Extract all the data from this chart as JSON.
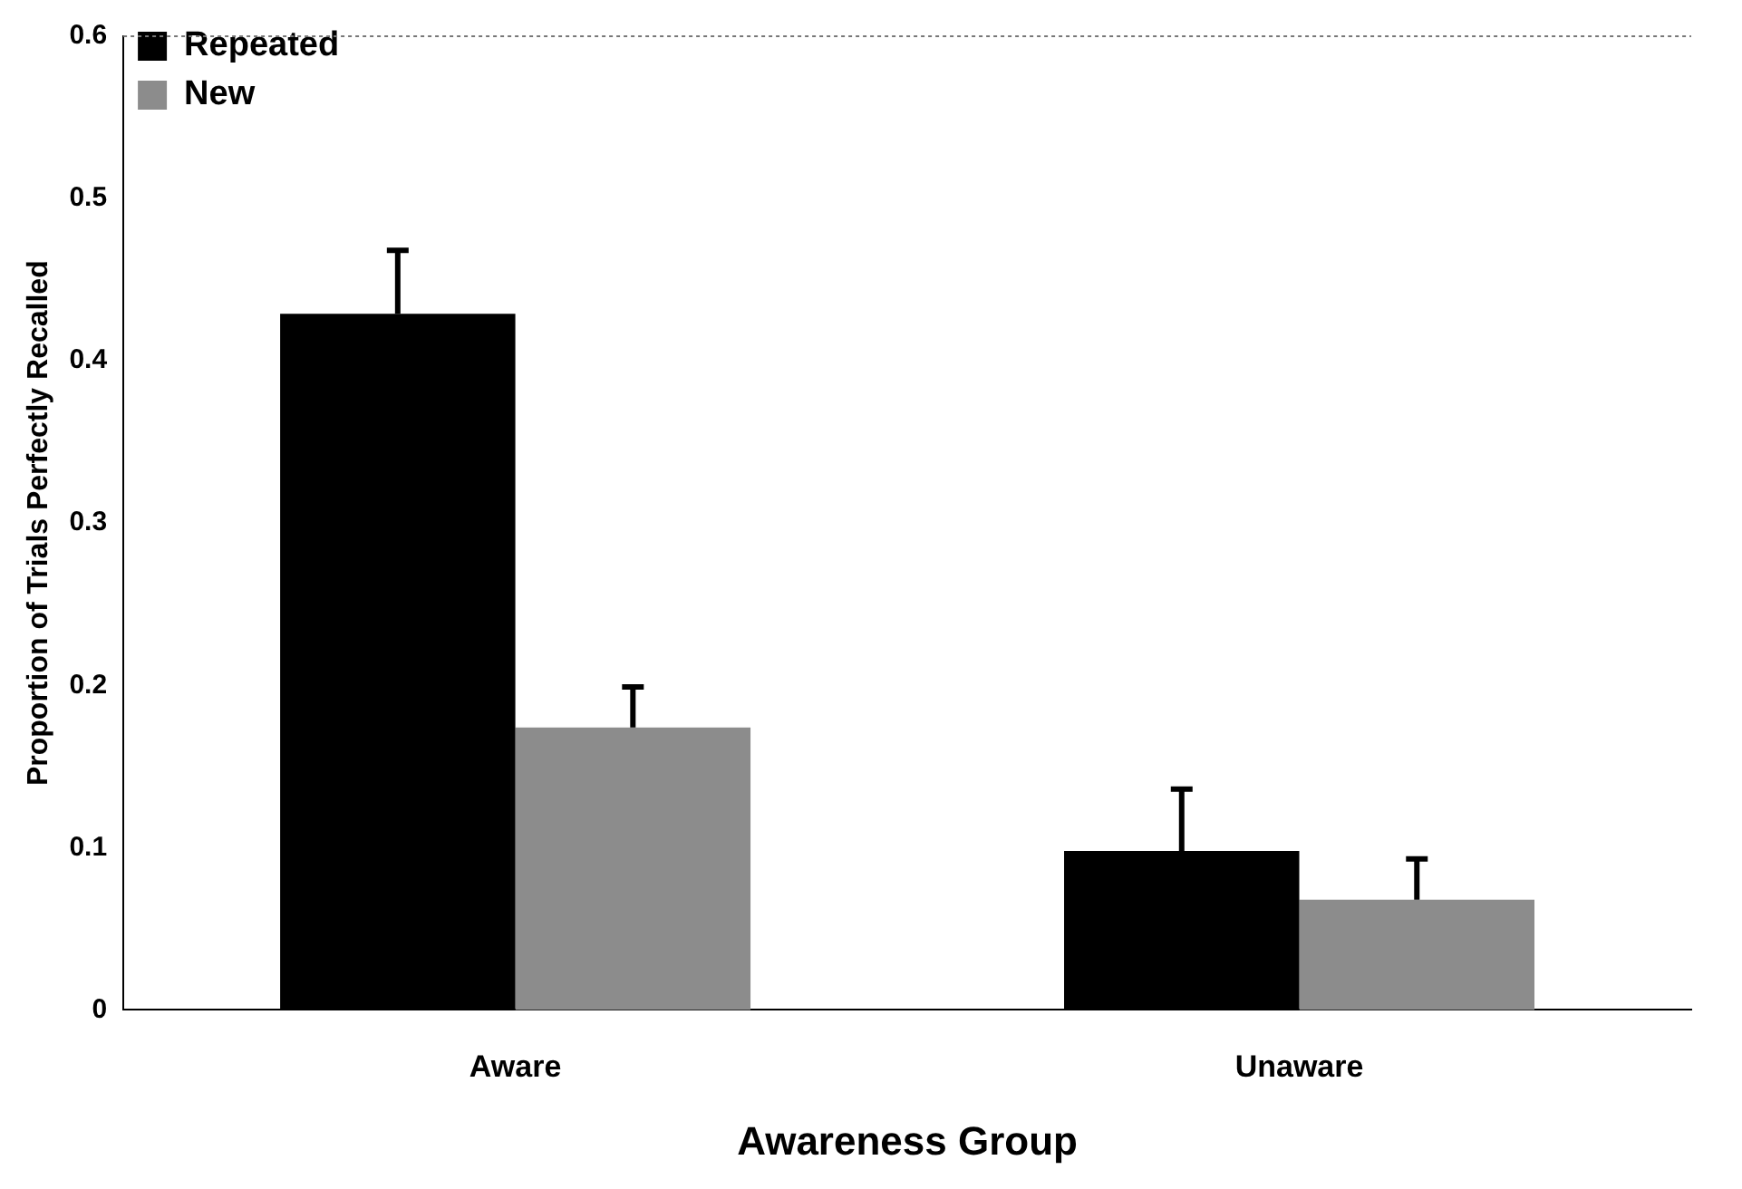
{
  "chart_data": {
    "type": "bar",
    "xlabel": "Awareness Group",
    "ylabel": "Proportion of Trials Perfectly Recalled",
    "categories": [
      "Aware",
      "Unaware"
    ],
    "series": [
      {
        "name": "Repeated",
        "color": "#000000",
        "values": [
          0.429,
          0.098
        ],
        "errors": [
          [
            0.429,
            0.468
          ],
          [
            0.098,
            0.136
          ]
        ]
      },
      {
        "name": "New",
        "color": "#8c8c8c",
        "values": [
          0.174,
          0.068
        ],
        "errors": [
          [
            0.174,
            0.199
          ],
          [
            0.068,
            0.093
          ]
        ]
      }
    ],
    "ylim": [
      0,
      0.6
    ],
    "yticks": [
      0,
      0.1,
      0.2,
      0.3,
      0.4,
      0.5,
      0.6
    ],
    "grid": false,
    "legend": "top left"
  }
}
